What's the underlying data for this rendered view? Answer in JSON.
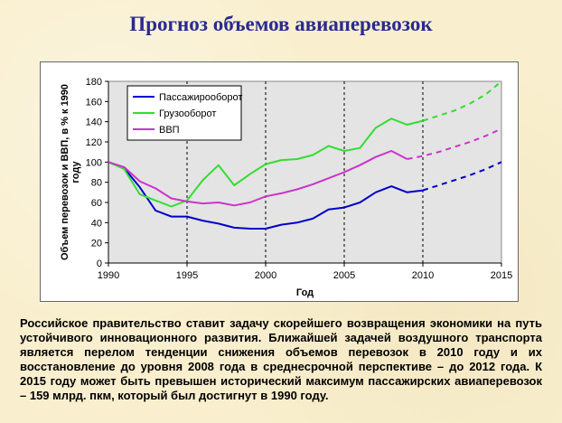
{
  "slide": {
    "title": "Прогноз объемов авиаперевозок",
    "body_text": "Российское правительство ставит задачу скорейшего возвращения экономики на путь устойчивого инновационного развития. Ближайшей задачей воздушного транспорта является перелом тенденции снижения объемов перевозок в 2010 году и их восстановление до уровня 2008 года в среднесрочной перспективе – до 2012 года. К 2015 году может быть превышен исторический максимум пассажирских авиаперевозок – 159 млрд. пкм, который был достигнут в 1990 году."
  },
  "chart_data": {
    "type": "line",
    "title": "",
    "xlabel": "Год",
    "ylabel": "Объем перевозок и ВВП, в % к 1990 году",
    "xlim": [
      1990,
      2015
    ],
    "ylim": [
      0,
      180
    ],
    "x_ticks": [
      1990,
      1995,
      2000,
      2005,
      2010,
      2015
    ],
    "y_ticks": [
      0,
      20,
      40,
      60,
      80,
      100,
      120,
      140,
      160,
      180
    ],
    "grid": "vertical dashed",
    "legend_position": "top-left",
    "plot_background": "#e4e4e4",
    "series": [
      {
        "name": "Пассажирооборот",
        "color": "#0000cc",
        "actual": [
          [
            1990,
            100
          ],
          [
            1991,
            94
          ],
          [
            1992,
            75
          ],
          [
            1993,
            52
          ],
          [
            1994,
            46
          ],
          [
            1995,
            46
          ],
          [
            1996,
            42
          ],
          [
            1997,
            39
          ],
          [
            1998,
            35
          ],
          [
            1999,
            34
          ],
          [
            2000,
            34
          ],
          [
            2001,
            38
          ],
          [
            2002,
            40
          ],
          [
            2003,
            44
          ],
          [
            2004,
            53
          ],
          [
            2005,
            55
          ],
          [
            2006,
            60
          ],
          [
            2007,
            70
          ],
          [
            2008,
            76
          ],
          [
            2009,
            70
          ],
          [
            2010,
            72
          ]
        ],
        "forecast": [
          [
            2010,
            72
          ],
          [
            2011,
            77
          ],
          [
            2012,
            82
          ],
          [
            2013,
            87
          ],
          [
            2014,
            93
          ],
          [
            2015,
            100
          ]
        ]
      },
      {
        "name": "Грузооборот",
        "color": "#33dd33",
        "actual": [
          [
            1990,
            100
          ],
          [
            1991,
            93
          ],
          [
            1992,
            68
          ],
          [
            1993,
            62
          ],
          [
            1994,
            56
          ],
          [
            1995,
            62
          ],
          [
            1996,
            82
          ],
          [
            1997,
            97
          ],
          [
            1998,
            77
          ],
          [
            1999,
            88
          ],
          [
            2000,
            98
          ],
          [
            2001,
            102
          ],
          [
            2002,
            103
          ],
          [
            2003,
            107
          ],
          [
            2004,
            116
          ],
          [
            2005,
            111
          ],
          [
            2006,
            114
          ],
          [
            2007,
            134
          ],
          [
            2008,
            143
          ],
          [
            2009,
            137
          ],
          [
            2010,
            141
          ]
        ],
        "forecast": [
          [
            2010,
            141
          ],
          [
            2011,
            146
          ],
          [
            2012,
            151
          ],
          [
            2013,
            158
          ],
          [
            2014,
            167
          ],
          [
            2015,
            180
          ]
        ]
      },
      {
        "name": "ВВП",
        "color": "#cc33cc",
        "actual": [
          [
            1990,
            100
          ],
          [
            1991,
            95
          ],
          [
            1992,
            81
          ],
          [
            1993,
            74
          ],
          [
            1994,
            64
          ],
          [
            1995,
            61
          ],
          [
            1996,
            59
          ],
          [
            1997,
            60
          ],
          [
            1998,
            57
          ],
          [
            1999,
            60
          ],
          [
            2000,
            66
          ],
          [
            2001,
            69
          ],
          [
            2002,
            73
          ],
          [
            2003,
            78
          ],
          [
            2004,
            84
          ],
          [
            2005,
            90
          ],
          [
            2006,
            97
          ],
          [
            2007,
            105
          ],
          [
            2008,
            111
          ],
          [
            2009,
            103
          ]
        ],
        "forecast": [
          [
            2009,
            103
          ],
          [
            2010,
            106
          ],
          [
            2011,
            110
          ],
          [
            2012,
            115
          ],
          [
            2013,
            120
          ],
          [
            2014,
            126
          ],
          [
            2015,
            133
          ]
        ]
      }
    ]
  }
}
